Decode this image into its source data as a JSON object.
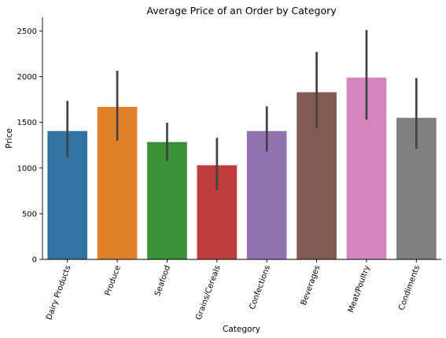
{
  "chart_data": {
    "type": "bar",
    "title": "Average Price of an Order by Category",
    "xlabel": "Category",
    "ylabel": "Price",
    "ylim": [
      0,
      2650
    ],
    "yticks": [
      0,
      500,
      1000,
      1500,
      2000,
      2500
    ],
    "categories": [
      "Dairy Products",
      "Produce",
      "Seafood",
      "Grains/Cereals",
      "Confections",
      "Beverages",
      "Meat/Poultry",
      "Condiments"
    ],
    "values": [
      1405,
      1670,
      1285,
      1030,
      1405,
      1830,
      1990,
      1550
    ],
    "error_low": [
      1115,
      1300,
      1075,
      760,
      1180,
      1440,
      1530,
      1210
    ],
    "error_high": [
      1735,
      2065,
      1495,
      1330,
      1675,
      2270,
      2510,
      1985
    ],
    "colors": [
      "#3274a1",
      "#e1812c",
      "#3a923a",
      "#c03d3e",
      "#9372b2",
      "#845b53",
      "#d684bd",
      "#7f7f7f"
    ],
    "errorbar_color": "#424242",
    "grid": false,
    "legend": "none"
  }
}
